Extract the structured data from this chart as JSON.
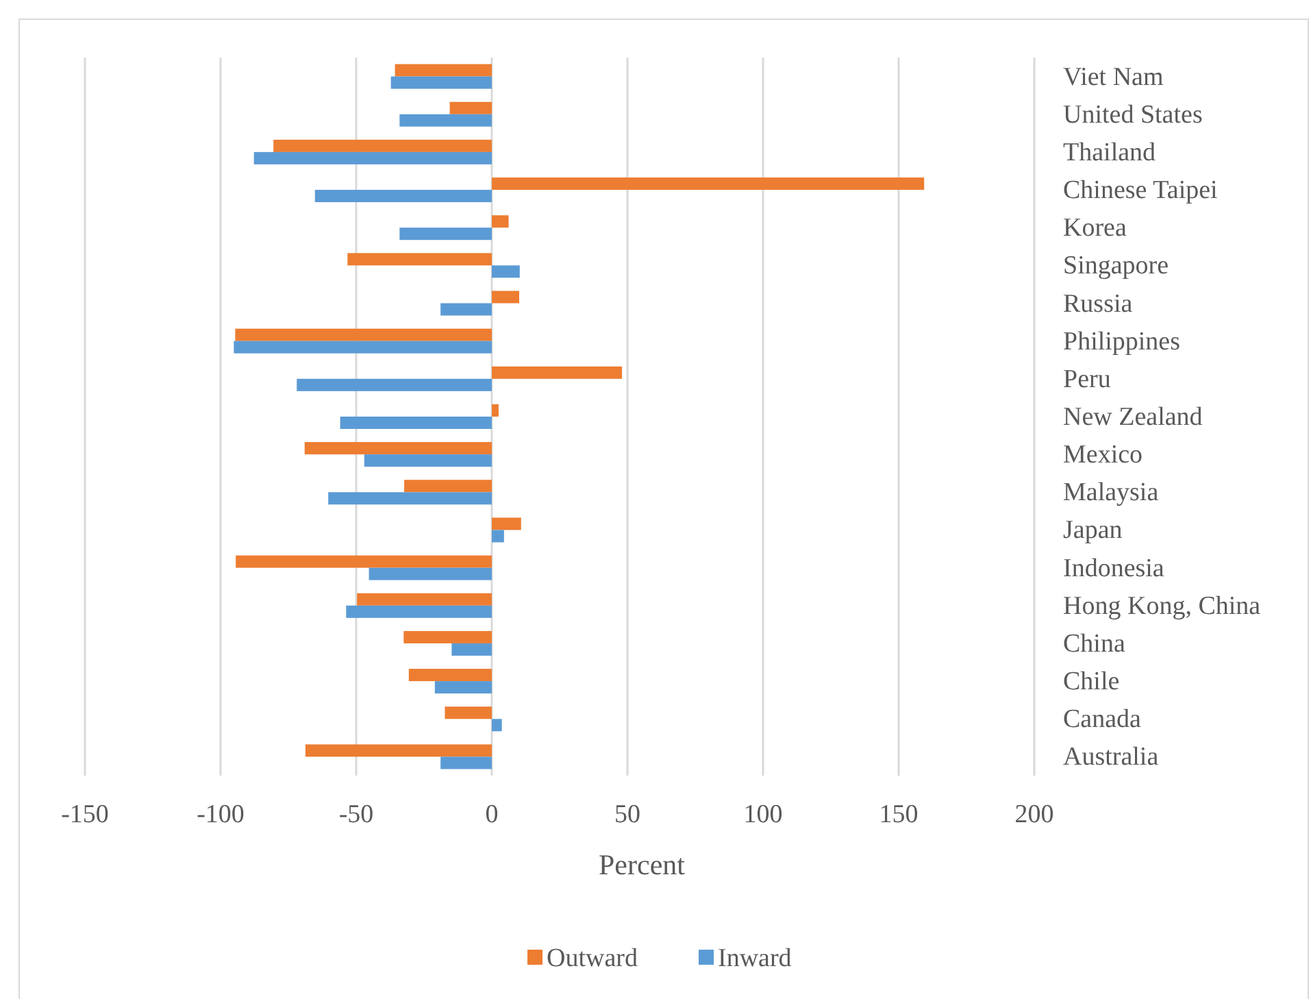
{
  "chart_data": {
    "type": "bar",
    "orientation": "horizontal",
    "xlabel": "Percent",
    "categories": [
      "Viet Nam",
      "United States",
      "Thailand",
      "Chinese Taipei",
      "Korea",
      "Singapore",
      "Russia",
      "Philippines",
      "Peru",
      "New Zealand",
      "Mexico",
      "Malaysia",
      "Japan",
      "Indonesia",
      "Hong Kong, China",
      "China",
      "Chile",
      "Canada",
      "Australia"
    ],
    "series": [
      {
        "name": "Outward",
        "color": "#ed7d31",
        "values": [
          -35.7,
          -15.5,
          -80.5,
          159.4,
          6.2,
          -53.2,
          10.1,
          -94.6,
          48,
          2.5,
          -69,
          -32.3,
          10.8,
          -94.4,
          -49.7,
          -32.5,
          -30.6,
          -17.3,
          -68.7
        ]
      },
      {
        "name": "Inward",
        "color": "#5b9bd5",
        "values": [
          -37.2,
          -34,
          -87.7,
          -65.2,
          -34,
          10.3,
          -18.9,
          -95.1,
          -71.9,
          -55.9,
          -47,
          -60.3,
          4.5,
          -45.3,
          -53.7,
          -14.8,
          -21,
          3.7,
          -18.9
        ]
      }
    ],
    "xlim": [
      -150,
      200
    ],
    "xticks": [
      -150,
      -100,
      -50,
      0,
      50,
      100,
      150,
      200
    ],
    "grid": "x",
    "legend": "bottom"
  }
}
